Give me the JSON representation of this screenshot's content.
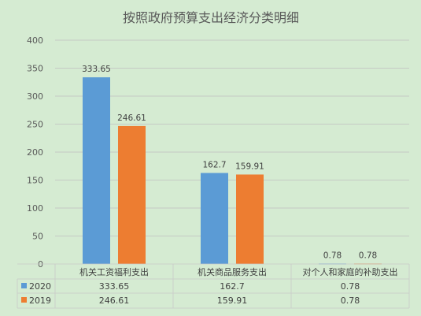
{
  "chart_data": {
    "type": "bar",
    "title": "按照政府预算支出经济分类明细",
    "categories": [
      "机关工资福利支出",
      "机关商品服务支出",
      "对个人和家庭的补助支出"
    ],
    "series": [
      {
        "name": "2020",
        "values": [
          333.65,
          162.7,
          0.78
        ],
        "labels": [
          "333.65",
          "162.7",
          "0.78"
        ],
        "color": "#5b9bd5"
      },
      {
        "name": "2019",
        "values": [
          246.61,
          159.91,
          0.78
        ],
        "labels": [
          "246.61",
          "159.91",
          "0.78"
        ],
        "color": "#ed7d31"
      }
    ],
    "yticks": [
      "0",
      "50",
      "100",
      "150",
      "200",
      "250",
      "300",
      "350",
      "400"
    ],
    "ylim": [
      0,
      400
    ],
    "grid": true,
    "legend": "data-table"
  }
}
